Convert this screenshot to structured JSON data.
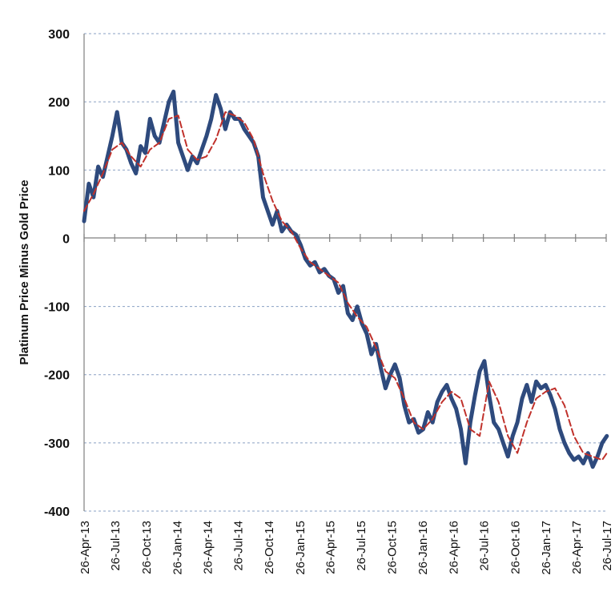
{
  "chart_data": {
    "type": "line",
    "title": "",
    "xlabel": "",
    "ylabel": "Platinum Price Minus Gold Price",
    "ylim": [
      -400,
      300
    ],
    "yticks": [
      -400,
      -300,
      -200,
      -100,
      0,
      100,
      200,
      300
    ],
    "xticks": [
      "26-Apr-13",
      "26-Jul-13",
      "26-Oct-13",
      "26-Jan-14",
      "26-Apr-14",
      "26-Jul-14",
      "26-Oct-14",
      "26-Jan-15",
      "26-Apr-15",
      "26-Jul-15",
      "26-Oct-15",
      "26-Jan-16",
      "26-Apr-16",
      "26-Jul-16",
      "26-Oct-16",
      "26-Jan-17",
      "26-Apr-17",
      "26-Jul-17"
    ],
    "grid": true,
    "colors": {
      "spread": "#2e4a7d",
      "average": "#c0312b",
      "grid": "#8aa0c4"
    },
    "series": [
      {
        "key": "spread",
        "style": "solid",
        "x": [
          "2013-04-26",
          "2013-05-10",
          "2013-05-24",
          "2013-06-07",
          "2013-06-21",
          "2013-07-05",
          "2013-07-19",
          "2013-08-02",
          "2013-08-16",
          "2013-08-30",
          "2013-09-13",
          "2013-09-27",
          "2013-10-11",
          "2013-10-25",
          "2013-11-08",
          "2013-11-22",
          "2013-12-06",
          "2013-12-20",
          "2014-01-03",
          "2014-01-17",
          "2014-01-31",
          "2014-02-14",
          "2014-02-28",
          "2014-03-14",
          "2014-03-28",
          "2014-04-11",
          "2014-04-25",
          "2014-05-09",
          "2014-05-23",
          "2014-06-06",
          "2014-06-20",
          "2014-07-04",
          "2014-07-18",
          "2014-08-01",
          "2014-08-15",
          "2014-08-29",
          "2014-09-12",
          "2014-09-26",
          "2014-10-10",
          "2014-10-24",
          "2014-11-07",
          "2014-11-21",
          "2014-12-05",
          "2014-12-19",
          "2015-01-02",
          "2015-01-16",
          "2015-01-30",
          "2015-02-13",
          "2015-02-27",
          "2015-03-13",
          "2015-03-27",
          "2015-04-10",
          "2015-04-24",
          "2015-05-08",
          "2015-05-22",
          "2015-06-05",
          "2015-06-19",
          "2015-07-03",
          "2015-07-17",
          "2015-07-31",
          "2015-08-14",
          "2015-08-28",
          "2015-09-11",
          "2015-09-25",
          "2015-10-09",
          "2015-10-23",
          "2015-11-06",
          "2015-11-20",
          "2015-12-04",
          "2015-12-18",
          "2016-01-01",
          "2016-01-15",
          "2016-01-29",
          "2016-02-12",
          "2016-02-26",
          "2016-03-11",
          "2016-03-25",
          "2016-04-08",
          "2016-04-22",
          "2016-05-06",
          "2016-05-20",
          "2016-06-03",
          "2016-06-17",
          "2016-07-01",
          "2016-07-15",
          "2016-07-29",
          "2016-08-12",
          "2016-08-26",
          "2016-09-09",
          "2016-09-23",
          "2016-10-07",
          "2016-10-21",
          "2016-11-04",
          "2016-11-18",
          "2016-12-02",
          "2016-12-16",
          "2016-12-30",
          "2017-01-13",
          "2017-01-27",
          "2017-02-10",
          "2017-02-24",
          "2017-03-10",
          "2017-03-24",
          "2017-04-07",
          "2017-04-21",
          "2017-05-05",
          "2017-05-19",
          "2017-06-02",
          "2017-06-16",
          "2017-06-30",
          "2017-07-14",
          "2017-07-28"
        ],
        "y": [
          25,
          80,
          60,
          105,
          90,
          120,
          150,
          185,
          140,
          130,
          110,
          95,
          135,
          125,
          175,
          150,
          140,
          170,
          200,
          215,
          140,
          120,
          100,
          120,
          110,
          130,
          150,
          175,
          210,
          190,
          160,
          185,
          175,
          175,
          160,
          150,
          140,
          120,
          60,
          40,
          20,
          40,
          10,
          20,
          10,
          5,
          -10,
          -30,
          -40,
          -35,
          -50,
          -45,
          -55,
          -60,
          -80,
          -70,
          -110,
          -120,
          -100,
          -125,
          -140,
          -170,
          -155,
          -190,
          -220,
          -200,
          -185,
          -205,
          -245,
          -270,
          -265,
          -285,
          -280,
          -255,
          -270,
          -240,
          -225,
          -215,
          -235,
          -250,
          -280,
          -330,
          -270,
          -230,
          -195,
          -180,
          -230,
          -270,
          -280,
          -300,
          -320,
          -290,
          -270,
          -235,
          -215,
          -240,
          -210,
          -220,
          -215,
          -230,
          -250,
          -280,
          -300,
          -315,
          -325,
          -320,
          -330,
          -315,
          -335,
          -320,
          -300,
          -290
        ]
      },
      {
        "key": "average",
        "style": "dashed",
        "x": [
          "2013-04-26",
          "2013-05-24",
          "2013-06-21",
          "2013-07-19",
          "2013-08-16",
          "2013-09-13",
          "2013-10-11",
          "2013-11-08",
          "2013-12-06",
          "2014-01-03",
          "2014-01-31",
          "2014-02-28",
          "2014-03-28",
          "2014-04-25",
          "2014-05-23",
          "2014-06-20",
          "2014-07-18",
          "2014-08-15",
          "2014-09-12",
          "2014-10-10",
          "2014-11-07",
          "2014-12-05",
          "2015-01-02",
          "2015-01-30",
          "2015-02-27",
          "2015-03-27",
          "2015-04-24",
          "2015-05-22",
          "2015-06-19",
          "2015-07-17",
          "2015-08-14",
          "2015-09-11",
          "2015-10-09",
          "2015-11-06",
          "2015-12-04",
          "2016-01-01",
          "2016-01-29",
          "2016-02-26",
          "2016-03-25",
          "2016-04-22",
          "2016-05-20",
          "2016-06-17",
          "2016-07-15",
          "2016-08-12",
          "2016-09-09",
          "2016-10-07",
          "2016-11-04",
          "2016-12-02",
          "2016-12-30",
          "2017-01-27",
          "2017-02-24",
          "2017-03-24",
          "2017-04-21",
          "2017-05-19",
          "2017-06-16",
          "2017-07-14",
          "2017-07-28"
        ],
        "y": [
          40,
          65,
          95,
          130,
          140,
          120,
          105,
          130,
          140,
          175,
          180,
          130,
          115,
          120,
          145,
          185,
          180,
          170,
          145,
          95,
          55,
          25,
          10,
          -15,
          -35,
          -45,
          -55,
          -65,
          -95,
          -115,
          -130,
          -160,
          -195,
          -205,
          -235,
          -270,
          -280,
          -265,
          -240,
          -225,
          -235,
          -280,
          -290,
          -210,
          -240,
          -290,
          -315,
          -270,
          -235,
          -225,
          -220,
          -245,
          -290,
          -315,
          -320,
          -325,
          -315
        ]
      }
    ]
  }
}
